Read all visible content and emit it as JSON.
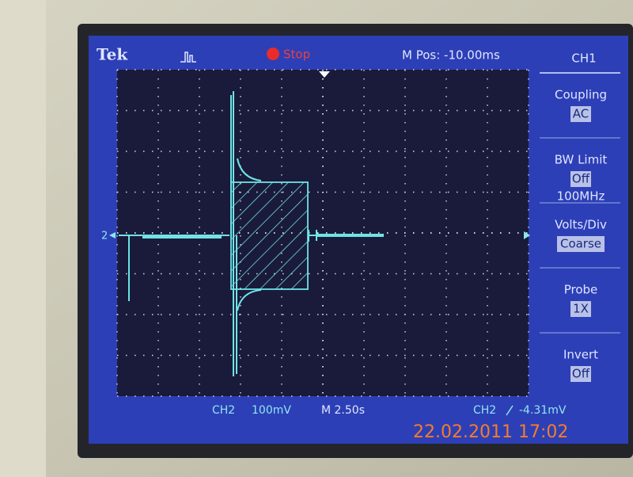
{
  "header": {
    "brand": "Tek",
    "status": "Stop",
    "m_pos": "M Pos: -10.00ms"
  },
  "menu": {
    "channel": "CH1",
    "items": [
      {
        "label": "Coupling",
        "values": [
          "AC"
        ]
      },
      {
        "label": "BW Limit",
        "values": [
          "Off",
          "100MHz"
        ]
      },
      {
        "label": "Volts/Div",
        "values": [
          "Coarse"
        ]
      },
      {
        "label": "Probe",
        "values": [
          "1X"
        ]
      },
      {
        "label": "Invert",
        "values": [
          "Off"
        ]
      }
    ]
  },
  "marker": "2",
  "footer": {
    "channel": "CH2",
    "volts": "100mV",
    "time": "M 2.50s",
    "trigger_channel": "CH2",
    "trigger_level": "-4.31mV"
  },
  "timestamp": "22.02.2011 17:02"
}
